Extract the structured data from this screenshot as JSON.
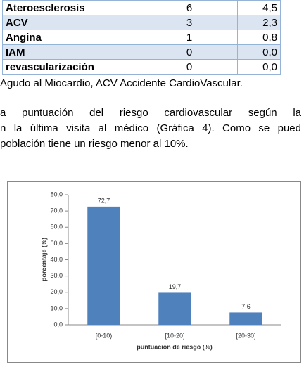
{
  "table": {
    "rows": [
      [
        "Ateroesclerosis",
        "6",
        "4,5"
      ],
      [
        "ACV",
        "3",
        "2,3"
      ],
      [
        "Angina",
        "1",
        "0,8"
      ],
      [
        "IAM",
        "0",
        "0,0"
      ],
      [
        "revascularización",
        "0",
        "0,0"
      ]
    ]
  },
  "caption": "Agudo al Miocardio, ACV Accidente CardioVascular.",
  "paragraph": [
    "a puntuación del riesgo cardiovascular según la",
    "n la última visita al médico (Gráfica 4).  Como se pued",
    "población tiene un riesgo menor al 10%."
  ],
  "chart_data": {
    "type": "bar",
    "x_label": "puntuación de riesgo (%)",
    "y_label": "porcentaje (%)",
    "categories": [
      "[0-10)",
      "[10-20]",
      "[20-30]"
    ],
    "values": [
      72.7,
      19.7,
      7.6
    ],
    "value_labels": [
      "72,7",
      "19,7",
      "7,6"
    ],
    "color": "#4f81bd",
    "ylim": [
      0,
      80
    ],
    "yticks": [
      {
        "value": 0,
        "label": "0,0"
      },
      {
        "value": 10,
        "label": "10,0"
      },
      {
        "value": 20,
        "label": "20,0"
      },
      {
        "value": 30,
        "label": "30,0"
      },
      {
        "value": 40,
        "label": "40,0"
      },
      {
        "value": 50,
        "label": "50,0"
      },
      {
        "value": 60,
        "label": "60,0"
      },
      {
        "value": 70,
        "label": "70,0"
      },
      {
        "value": 80,
        "label": "80,0"
      }
    ],
    "grid": false
  }
}
